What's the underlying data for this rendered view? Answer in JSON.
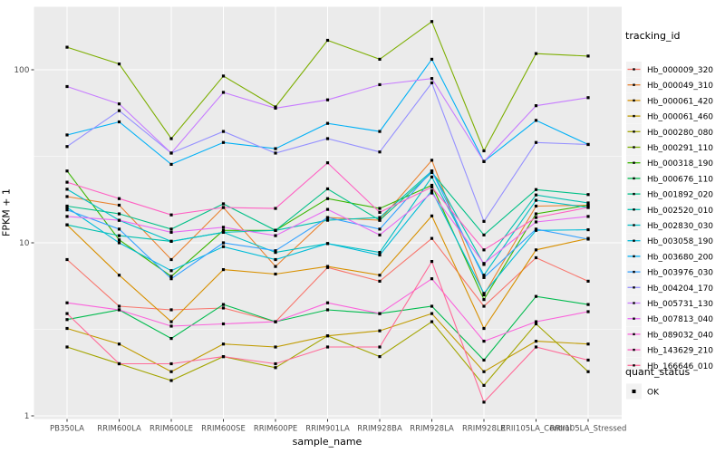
{
  "chart_data": {
    "type": "line",
    "title": "",
    "xlabel": "sample_name",
    "ylabel": "FPKM + 1",
    "y_scale": "log10",
    "y_ticks": [
      1,
      10,
      100
    ],
    "y_minor_ticks": [
      3.162,
      31.62
    ],
    "ylim": [
      1,
      230
    ],
    "grid": true,
    "panel_bg": "#EBEBEB",
    "grid_color": "#FFFFFF",
    "tick_label_color": "#4D4D4D",
    "marker": "black-square",
    "categories": [
      "PB350LA",
      "RRIM600LA",
      "RRIM600LE",
      "RRIM600SE",
      "RRIM600PE",
      "RRIM901LA",
      "RRIM928BA",
      "RRIM928LA",
      "RRIM928LE",
      "RRII105LA_Control",
      "RRII105LA_Stressed"
    ],
    "series": [
      {
        "name": "Hb_000009_320",
        "color": "#F8766D",
        "values": [
          8.0,
          4.3,
          4.1,
          4.2,
          3.5,
          7.2,
          6.0,
          10.6,
          4.3,
          8.2,
          6.0
        ]
      },
      {
        "name": "Hb_000049_310",
        "color": "#EA8331",
        "values": [
          18.5,
          16.5,
          8.0,
          16.0,
          7.3,
          14.0,
          13.5,
          30.0,
          5.0,
          16.3,
          16.5
        ]
      },
      {
        "name": "Hb_000061_420",
        "color": "#D89000",
        "values": [
          12.7,
          6.5,
          3.5,
          7.0,
          6.6,
          7.3,
          6.5,
          14.3,
          3.2,
          9.1,
          10.6
        ]
      },
      {
        "name": "Hb_000061_460",
        "color": "#C09B00",
        "values": [
          3.2,
          2.6,
          1.8,
          2.6,
          2.5,
          2.9,
          3.1,
          3.9,
          1.8,
          2.7,
          2.6
        ]
      },
      {
        "name": "Hb_000280_080",
        "color": "#A3A500",
        "values": [
          2.5,
          2.0,
          1.6,
          2.2,
          1.9,
          2.9,
          2.2,
          3.5,
          1.5,
          3.4,
          1.8
        ]
      },
      {
        "name": "Hb_000291_110",
        "color": "#7CAE00",
        "values": [
          135,
          108,
          40,
          92,
          61,
          148,
          115,
          190,
          34,
          124,
          120
        ]
      },
      {
        "name": "Hb_000318_190",
        "color": "#39B600",
        "values": [
          26,
          10.4,
          6.4,
          11.8,
          11.8,
          18.0,
          15.8,
          21.5,
          4.7,
          14.7,
          16.5
        ]
      },
      {
        "name": "Hb_000676_110",
        "color": "#00BB4E",
        "values": [
          3.6,
          4.1,
          2.8,
          4.4,
          3.5,
          4.1,
          3.9,
          4.3,
          2.1,
          4.9,
          4.4
        ]
      },
      {
        "name": "Hb_001892_020",
        "color": "#00C087",
        "values": [
          16.3,
          14.7,
          12.0,
          16.8,
          11.8,
          20.5,
          13.5,
          25.5,
          11.1,
          20.3,
          19.0
        ]
      },
      {
        "name": "Hb_002520_010",
        "color": "#00C0AF",
        "values": [
          12.7,
          11.0,
          10.2,
          11.5,
          11.8,
          13.5,
          14.0,
          26.0,
          7.5,
          18.9,
          17.0
        ]
      },
      {
        "name": "Hb_002830_030",
        "color": "#00BFC4",
        "values": [
          20.4,
          13.5,
          10.2,
          11.5,
          8.8,
          9.9,
          8.8,
          24.0,
          6.5,
          17.6,
          16.0
        ]
      },
      {
        "name": "Hb_003058_190",
        "color": "#00BCD8",
        "values": [
          16.0,
          10.0,
          6.9,
          9.5,
          8.0,
          9.9,
          8.5,
          20.0,
          5.1,
          11.8,
          11.9
        ]
      },
      {
        "name": "Hb_003680_200",
        "color": "#00B0F6",
        "values": [
          42,
          50,
          28.4,
          38,
          35,
          49,
          44,
          115,
          29.5,
          51,
          37
        ]
      },
      {
        "name": "Hb_003976_030",
        "color": "#35A2FF",
        "values": [
          15.5,
          12.0,
          6.2,
          10.0,
          9.0,
          14.0,
          12.0,
          26.0,
          6.3,
          12.0,
          10.5
        ]
      },
      {
        "name": "Hb_004204_170",
        "color": "#9590FF",
        "values": [
          36,
          58,
          33,
          44,
          33,
          40,
          33.5,
          84,
          13.3,
          38,
          37
        ]
      },
      {
        "name": "Hb_005731_130",
        "color": "#C77CFF",
        "values": [
          80,
          63.5,
          33,
          74,
          60,
          67,
          82,
          89,
          29.5,
          62,
          69
        ]
      },
      {
        "name": "Hb_007813_040",
        "color": "#E76BF3",
        "values": [
          14.2,
          13.5,
          11.5,
          12.3,
          11.0,
          15.6,
          11.1,
          19.4,
          7.6,
          13.2,
          14.2
        ]
      },
      {
        "name": "Hb_089032_040",
        "color": "#FA62DB",
        "values": [
          4.5,
          4.1,
          3.3,
          3.4,
          3.5,
          4.5,
          3.9,
          6.2,
          2.7,
          3.5,
          4.0
        ]
      },
      {
        "name": "Hb_143629_210",
        "color": "#FF61C3",
        "values": [
          22.4,
          18.0,
          14.5,
          16.0,
          15.8,
          29.0,
          15.0,
          21.0,
          9.1,
          14.0,
          16.0
        ]
      },
      {
        "name": "Hb_166646_010",
        "color": "#FF6A98",
        "values": [
          3.9,
          2.0,
          2.0,
          2.2,
          2.0,
          2.5,
          2.5,
          7.8,
          1.2,
          2.5,
          2.1
        ]
      }
    ],
    "legend": {
      "title": "tracking_id",
      "position": "right"
    },
    "legend2": {
      "title": "quant_status",
      "items": [
        {
          "label": "OK",
          "marker": "black-square"
        }
      ]
    }
  }
}
